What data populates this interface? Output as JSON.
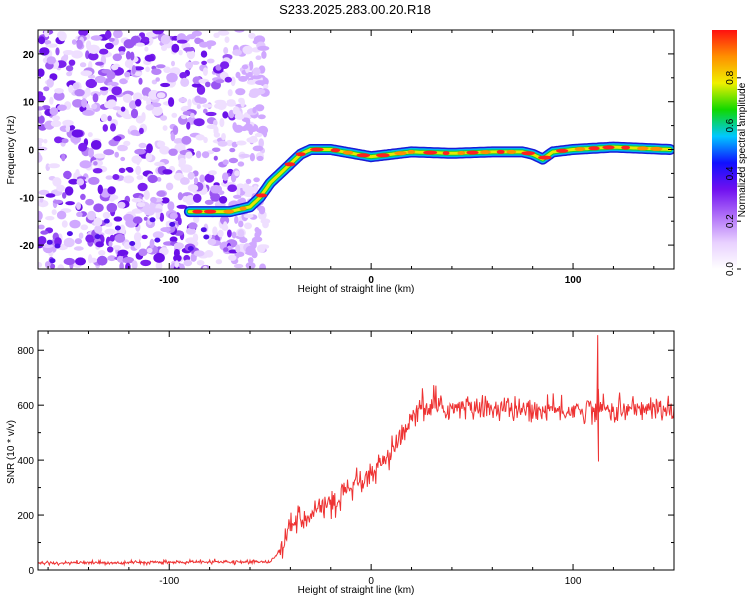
{
  "title": "S233.2025.283.00.20.R18",
  "chart_data": [
    {
      "type": "heatmap",
      "name": "spectrogram",
      "xlabel": "Height of straight line (km)",
      "ylabel": "Frequency (Hz)",
      "xlim": [
        -165,
        150
      ],
      "ylim": [
        -25,
        25
      ],
      "xticks": [
        -100,
        0,
        100
      ],
      "yticks": [
        -20,
        -10,
        0,
        10,
        20
      ],
      "colorbar": {
        "label": "Normalized spectral amplitude",
        "range": [
          0,
          1
        ],
        "ticks": [
          0.0,
          0.2,
          0.4,
          0.6,
          0.8
        ],
        "tick_labels": [
          "0.0",
          "0.2",
          "0.4",
          "0.6",
          "0.8"
        ],
        "colors": [
          "#ffffff",
          "#e8d0ff",
          "#b070f8",
          "#7010f0",
          "#1010ff",
          "#00c8ff",
          "#10d800",
          "#f0f000",
          "#ff9000",
          "#ff1010"
        ]
      },
      "ridge": {
        "x": [
          -90,
          -70,
          -60,
          -55,
          -50,
          -45,
          -40,
          -35,
          -30,
          -20,
          0,
          20,
          40,
          60,
          75,
          80,
          85,
          90,
          100,
          120,
          148
        ],
        "freq_hz": [
          -13,
          -13,
          -12,
          -10,
          -7,
          -5,
          -3,
          -1,
          0,
          0,
          -1.5,
          -0.5,
          -0.8,
          -0.5,
          -0.5,
          -1,
          -2,
          -0.5,
          0,
          0.5,
          0
        ]
      },
      "noise_region_x": [
        -165,
        -60
      ]
    },
    {
      "type": "line",
      "name": "snr",
      "xlabel": "Height of straight line (km)",
      "ylabel": "SNR (10 * v/v)",
      "xlim": [
        -165,
        150
      ],
      "ylim": [
        0,
        870
      ],
      "xticks": [
        -100,
        0,
        100
      ],
      "yticks": [
        0,
        200,
        400,
        600,
        800
      ],
      "color": "#ee3333",
      "profile": {
        "x": [
          -165,
          -50,
          -43,
          -40,
          -30,
          -20,
          -10,
          0,
          10,
          20,
          25,
          40,
          60,
          80,
          100,
          113,
          120,
          140,
          150
        ],
        "y": [
          25,
          30,
          90,
          170,
          210,
          240,
          290,
          340,
          420,
          540,
          590,
          590,
          590,
          580,
          580,
          590,
          580,
          590,
          570
        ]
      },
      "peaks": [
        {
          "x": 112,
          "y": 855
        },
        {
          "x": 113,
          "y": 395
        }
      ]
    }
  ]
}
